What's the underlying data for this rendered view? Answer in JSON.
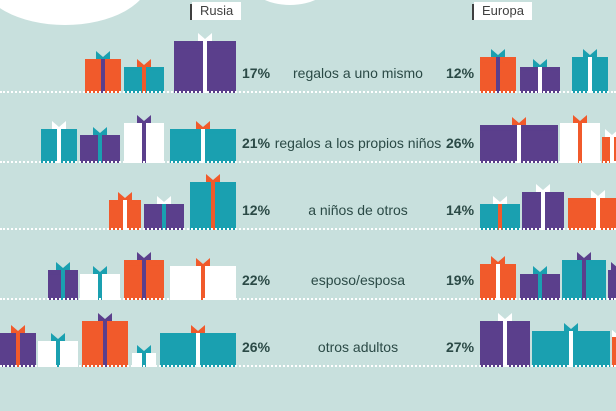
{
  "chart_data": {
    "type": "table",
    "columns": [
      "Rusia",
      "Europa"
    ],
    "rows": [
      {
        "category": "regalos a uno mismo",
        "values": [
          "17%",
          "12%"
        ]
      },
      {
        "category": "regalos a los propios niños",
        "values": [
          "21%",
          "26%"
        ]
      },
      {
        "category": "a niños de otros",
        "values": [
          "12%",
          "14%"
        ]
      },
      {
        "category": "esposo/esposa",
        "values": [
          "22%",
          "19%"
        ]
      },
      {
        "category": "otros adultos",
        "values": [
          "26%",
          "27%"
        ]
      }
    ]
  },
  "colors": {
    "background": "#c8e0dd",
    "orange": "#f15a2b",
    "purple": "#5b3f8c",
    "teal": "#1aa0b0",
    "white": "#ffffff",
    "text": "#2b4a46"
  }
}
